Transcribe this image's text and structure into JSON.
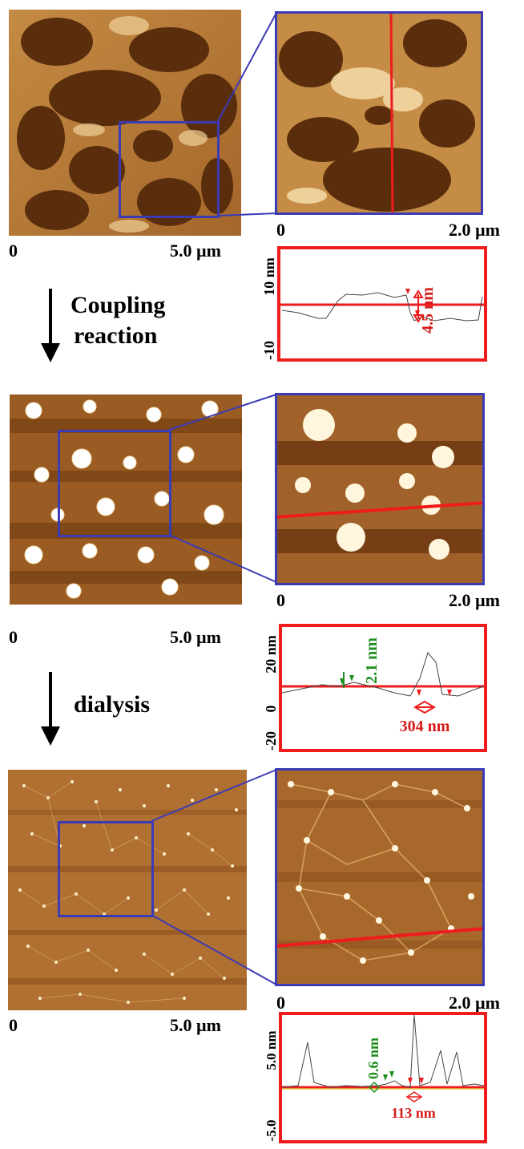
{
  "panel1": {
    "overview_scale": {
      "start": "0",
      "end": "5.0 µm"
    },
    "zoom_scale": {
      "start": "0",
      "end": "2.0 µm"
    },
    "profile": {
      "y_top": "10 nm",
      "y_bottom": "-10",
      "annotations": [
        {
          "text": "4.5 nm",
          "color": "#d81b1b"
        }
      ]
    }
  },
  "step1": {
    "line1": "Coupling",
    "line2": "reaction"
  },
  "panel2": {
    "overview_scale": {
      "start": "0",
      "end": "5.0 µm"
    },
    "zoom_scale": {
      "start": "0",
      "end": "2.0 µm"
    },
    "profile": {
      "y_top": "20 nm",
      "y_mid": "0",
      "y_bottom": "-20",
      "annotations": [
        {
          "text": "2.1 nm",
          "color": "#1f8f1f"
        },
        {
          "text": "304 nm",
          "color": "#d81b1b"
        }
      ]
    }
  },
  "step2": {
    "line1": "dialysis"
  },
  "panel3": {
    "overview_scale": {
      "start": "0",
      "end": "5.0 µm"
    },
    "zoom_scale": {
      "start": "0",
      "end": "2.0 µm"
    },
    "profile": {
      "y_top": "5.0 nm",
      "y_bottom": "-5.0",
      "annotations": [
        {
          "text": "0.6 nm",
          "color": "#1f8f1f"
        },
        {
          "text": "113 nm",
          "color": "#d81b1b"
        }
      ]
    }
  },
  "colors": {
    "frame_blue": "#3b3bb5",
    "frame_red": "#ee1c1c",
    "afm_dark": "#5a2e0c",
    "afm_mid": "#b8772c",
    "afm_light": "#f6deae"
  }
}
